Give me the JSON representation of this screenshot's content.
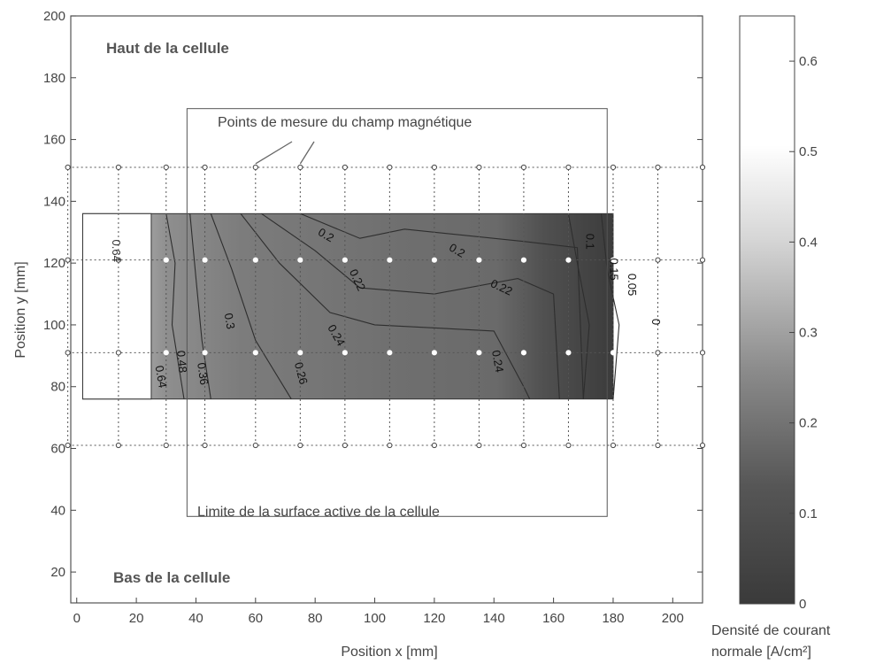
{
  "chart_data": {
    "type": "heatmap",
    "colormap": "grayscale (dark = low, light = high)",
    "xlabel": "Position x [mm]",
    "ylabel": "Position y [mm]",
    "xlim": [
      -2,
      210
    ],
    "ylim": [
      10,
      200
    ],
    "x_ticks": [
      0,
      20,
      40,
      60,
      80,
      100,
      120,
      140,
      160,
      180,
      200
    ],
    "x_tick_labels": [
      "0",
      "20",
      "40",
      "60",
      "80",
      "100",
      "120",
      "140",
      "160",
      "180",
      "200"
    ],
    "y_ticks": [
      20,
      40,
      60,
      80,
      100,
      120,
      140,
      160,
      180,
      200
    ],
    "y_tick_labels": [
      "20",
      "40",
      "60",
      "80",
      "100",
      "120",
      "140",
      "160",
      "180",
      "200"
    ],
    "grid": false,
    "active_area": {
      "x": [
        2,
        180
      ],
      "y": [
        76,
        136
      ]
    },
    "active_area_label_text": "Limite de la surface active de la cellule",
    "cell_frame": {
      "x": [
        37,
        178
      ],
      "y": [
        38,
        170
      ]
    },
    "annotations": {
      "top": "Haut de la cellule",
      "bottom": "Bas de la cellule",
      "measure_points": "Points de mesure du champ magnétique"
    },
    "measure_points": {
      "x": [
        -3,
        14,
        30,
        43,
        60,
        75,
        90,
        105,
        120,
        135,
        150,
        165,
        180,
        195,
        210
      ],
      "y": [
        61,
        91,
        121,
        151
      ]
    },
    "contour_levels": [
      0,
      0.05,
      0.1,
      0.15,
      0.2,
      0.22,
      0.24,
      0.26,
      0.3,
      0.36,
      0.48,
      0.64
    ],
    "contour_labels": [
      {
        "text": "0.64",
        "x": 12,
        "y": 124,
        "rotate": 90
      },
      {
        "text": "0.64",
        "x": 27,
        "y": 83,
        "rotate": 80
      },
      {
        "text": "0.48",
        "x": 34,
        "y": 88,
        "rotate": 85
      },
      {
        "text": "0.36",
        "x": 41,
        "y": 84,
        "rotate": 82
      },
      {
        "text": "0.3",
        "x": 50,
        "y": 101,
        "rotate": 80
      },
      {
        "text": "0.26",
        "x": 74,
        "y": 84,
        "rotate": 75
      },
      {
        "text": "0.24",
        "x": 86,
        "y": 96,
        "rotate": 60
      },
      {
        "text": "0.22",
        "x": 93,
        "y": 114,
        "rotate": 65
      },
      {
        "text": "0.2",
        "x": 83,
        "y": 128,
        "rotate": 30
      },
      {
        "text": "0.2",
        "x": 127,
        "y": 123,
        "rotate": 30
      },
      {
        "text": "0.22",
        "x": 142,
        "y": 111,
        "rotate": 25
      },
      {
        "text": "0.24",
        "x": 140,
        "y": 88,
        "rotate": 80
      },
      {
        "text": "0.1",
        "x": 171,
        "y": 127,
        "rotate": 90
      },
      {
        "text": "0.15",
        "x": 179,
        "y": 118,
        "rotate": 90
      },
      {
        "text": "0.05",
        "x": 185,
        "y": 113,
        "rotate": 90
      },
      {
        "text": "0",
        "x": 193,
        "y": 101,
        "rotate": 90
      }
    ],
    "colorbar": {
      "range": [
        0,
        0.65
      ],
      "ticks": [
        0,
        0.1,
        0.2,
        0.3,
        0.4,
        0.5,
        0.6
      ],
      "tick_labels": [
        "0",
        "0.1",
        "0.2",
        "0.3",
        "0.4",
        "0.5",
        "0.6"
      ],
      "label_line1": "Densité de courant",
      "label_line2": "normale [A/cm²]"
    }
  }
}
